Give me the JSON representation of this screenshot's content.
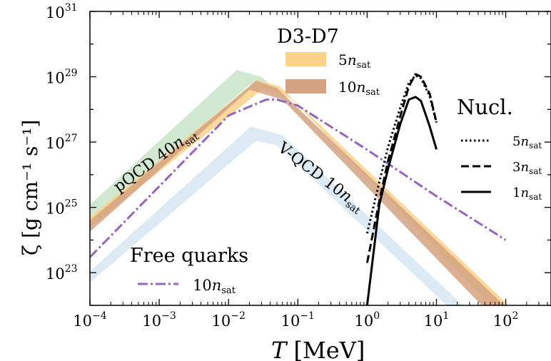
{
  "chart_data": {
    "type": "line",
    "xlabel": {
      "italic": "T",
      "rest": " [MeV]"
    },
    "ylabel": "ζ [g cm⁻¹ s⁻¹]",
    "xscale": "log",
    "yscale": "log",
    "xlim": [
      0.0001,
      450
    ],
    "ylim": [
      1e+22,
      1e+31
    ],
    "x_tick_labels": [
      {
        "value": 0.0001,
        "base": "10",
        "exp": "−4"
      },
      {
        "value": 0.001,
        "base": "10",
        "exp": "−3"
      },
      {
        "value": 0.01,
        "base": "10",
        "exp": "−2"
      },
      {
        "value": 0.1,
        "base": "10",
        "exp": "−1"
      },
      {
        "value": 1,
        "base": "10",
        "exp": "0"
      },
      {
        "value": 10,
        "base": "10",
        "exp": "1"
      },
      {
        "value": 100,
        "base": "10",
        "exp": "2"
      }
    ],
    "y_tick_labels": [
      {
        "value": 1e+23,
        "base": "10",
        "exp": "23"
      },
      {
        "value": 1e+25,
        "base": "10",
        "exp": "25"
      },
      {
        "value": 1e+27,
        "base": "10",
        "exp": "27"
      },
      {
        "value": 1e+29,
        "base": "10",
        "exp": "29"
      },
      {
        "value": 1e+31,
        "base": "10",
        "exp": "31"
      }
    ],
    "bands": [
      {
        "name": "pQCD 40nsat",
        "color": "#c9e5c9",
        "upper": [
          [
            0.0001,
            1.2e+25
          ],
          [
            0.013,
            1.6e+29
          ],
          [
            0.03,
            1e+29
          ],
          [
            100,
            1e+22
          ]
        ],
        "lower": [
          [
            0.0001,
            4e+24
          ],
          [
            0.02,
            5.5e+28
          ],
          [
            0.05,
            3.3e+28
          ],
          [
            100,
            1e+22
          ]
        ]
      },
      {
        "name": "V-QCD 10nsat",
        "color": "#d6e6f2",
        "upper": [
          [
            0.0001,
            1.1e+23
          ],
          [
            0.021,
            3e+27
          ],
          [
            0.06,
            1.6e+27
          ],
          [
            24,
            1e+22
          ]
        ],
        "lower": [
          [
            0.0001,
            5e+22
          ],
          [
            0.025,
            1.1e+27
          ],
          [
            0.05,
            8e+26
          ],
          [
            14,
            1e+22
          ]
        ]
      },
      {
        "name": "D3-D7 5nsat",
        "color": "#fbd28a",
        "upper": [
          [
            0.0001,
            5e+24
          ],
          [
            0.026,
            8e+28
          ],
          [
            0.055,
            5e+28
          ],
          [
            110,
            1e+22
          ]
        ],
        "lower": [
          [
            0.0001,
            2.5e+24
          ],
          [
            0.031,
            4.2e+28
          ],
          [
            0.08,
            2.2e+28
          ],
          [
            60,
            1e+22
          ]
        ]
      },
      {
        "name": "D3-D7 10nsat",
        "color": "#d4a383",
        "upper": [
          [
            0.0001,
            4e+24
          ],
          [
            0.025,
            7.5e+28
          ],
          [
            0.05,
            4.5e+28
          ],
          [
            95,
            1e+22
          ]
        ],
        "lower": [
          [
            0.0001,
            1.8e+24
          ],
          [
            0.02,
            4e+28
          ],
          [
            0.06,
            2e+28
          ],
          [
            45,
            1e+22
          ]
        ]
      }
    ],
    "series": [
      {
        "name": "10nsat",
        "group": "Free quarks",
        "color": "#9467bd",
        "style": "dashdot",
        "points": [
          [
            0.0001,
            3e+23
          ],
          [
            0.01,
            6.5e+27
          ],
          [
            0.035,
            2e+28
          ],
          [
            0.05,
            2e+28
          ],
          [
            0.1,
            1.3e+28
          ],
          [
            1,
            5.8e+26
          ],
          [
            10,
            2.2e+25
          ],
          [
            100,
            1e+24
          ]
        ]
      },
      {
        "name": "5nsat",
        "group": "Nucl.",
        "color": "#000000",
        "style": "dotted",
        "points": [
          [
            1,
            1.6e+24
          ],
          [
            1.5,
            6e+25
          ],
          [
            2,
            7e+26
          ],
          [
            3,
            1.1e+28
          ],
          [
            4,
            6.5e+28
          ],
          [
            5,
            1.1e+29
          ],
          [
            6,
            9e+28
          ],
          [
            8,
            2.5e+28
          ],
          [
            10,
            4e+27
          ]
        ]
      },
      {
        "name": "3nsat",
        "group": "Nucl.",
        "color": "#000000",
        "style": "dashed",
        "points": [
          [
            1,
            2e+23
          ],
          [
            1.5,
            1.6e+25
          ],
          [
            2,
            2.6e+26
          ],
          [
            3,
            6e+27
          ],
          [
            4,
            5e+28
          ],
          [
            5,
            1.2e+29
          ],
          [
            6,
            1e+29
          ],
          [
            8,
            3e+28
          ],
          [
            10,
            4e+27
          ]
        ]
      },
      {
        "name": "1nsat",
        "group": "Nucl.",
        "color": "#000000",
        "style": "solid",
        "points": [
          [
            1,
            1e+22
          ],
          [
            1.5,
            1.2e+25
          ],
          [
            2,
            1.5e+26
          ],
          [
            3,
            3.5e+27
          ],
          [
            4,
            2e+28
          ],
          [
            5,
            2.4e+28
          ],
          [
            6,
            1.8e+28
          ],
          [
            8,
            3e+27
          ],
          [
            10,
            6e+26
          ]
        ]
      }
    ],
    "annotations": {
      "pqcd": {
        "prefix": "pQCD 40",
        "n": "n",
        "sub": "sat"
      },
      "vqcd": {
        "prefix": "V-QCD 10",
        "n": "n",
        "sub": "sat"
      }
    },
    "legend_d3d7": {
      "title": "D3-D7",
      "items": [
        {
          "num": "5",
          "n": "n",
          "sub": "sat",
          "color": "#fbd28a"
        },
        {
          "num": "10",
          "n": "n",
          "sub": "sat",
          "color": "#d4a383"
        }
      ]
    },
    "legend_nucl": {
      "title": "Nucl.",
      "items": [
        {
          "num": "5",
          "n": "n",
          "sub": "sat",
          "style": "dotted"
        },
        {
          "num": "3",
          "n": "n",
          "sub": "sat",
          "style": "dashed"
        },
        {
          "num": "1",
          "n": "n",
          "sub": "sat",
          "style": "solid"
        }
      ]
    },
    "legend_free": {
      "title": "Free quarks",
      "items": [
        {
          "num": "10",
          "n": "n",
          "sub": "sat",
          "style": "dashdot",
          "color": "#9467bd"
        }
      ]
    }
  }
}
